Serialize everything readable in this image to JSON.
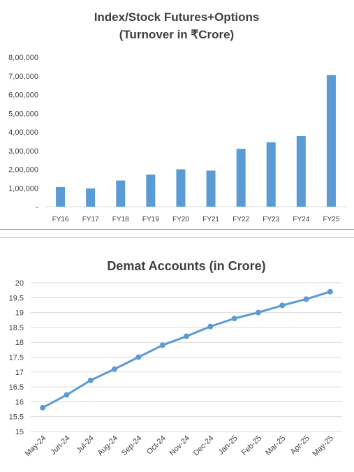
{
  "chart_data": [
    {
      "type": "bar",
      "title": "Index/Stock Futures+Options",
      "subtitle": "(Turnover in ₹Crore)",
      "xlabel": "",
      "ylabel": "",
      "categories": [
        "FY16",
        "FY17",
        "FY18",
        "FY19",
        "FY20",
        "FY21",
        "FY22",
        "FY23",
        "FY24",
        "FY25"
      ],
      "values": [
        105000,
        98000,
        140000,
        172000,
        200000,
        193000,
        310000,
        345000,
        378000,
        705000
      ],
      "ylim": [
        0,
        800000
      ],
      "yticks": [
        0,
        100000,
        200000,
        300000,
        400000,
        500000,
        600000,
        700000,
        800000
      ],
      "ytick_labels": [
        "-",
        "1,00,000",
        "2,00,000",
        "3,00,000",
        "4,00,000",
        "5,00,000",
        "6,00,000",
        "7,00,000",
        "8,00,000"
      ],
      "color": "#5b9bd5",
      "grid": false,
      "legend": "none"
    },
    {
      "type": "line",
      "title": "Demat Accounts (in Crore)",
      "xlabel": "",
      "ylabel": "",
      "categories": [
        "May-24",
        "Jun-24",
        "Jul-24",
        "Aug-24",
        "Sep-24",
        "Oct-24",
        "Nov-24",
        "Dec-24",
        "Jan-25",
        "Feb-25",
        "Mar-25",
        "Apr-25",
        "May-25"
      ],
      "values": [
        15.8,
        16.23,
        16.72,
        17.1,
        17.5,
        17.9,
        18.2,
        18.53,
        18.8,
        19.0,
        19.24,
        19.45,
        19.7
      ],
      "ylim": [
        15,
        20
      ],
      "yticks": [
        15,
        15.5,
        16,
        16.5,
        17,
        17.5,
        18,
        18.5,
        19,
        19.5,
        20
      ],
      "ytick_labels": [
        "15",
        "15.5",
        "16",
        "16.5",
        "17",
        "17.5",
        "18",
        "18.5",
        "19",
        "19.5",
        "20"
      ],
      "color": "#5b9bd5",
      "grid": true,
      "legend": "none"
    }
  ]
}
